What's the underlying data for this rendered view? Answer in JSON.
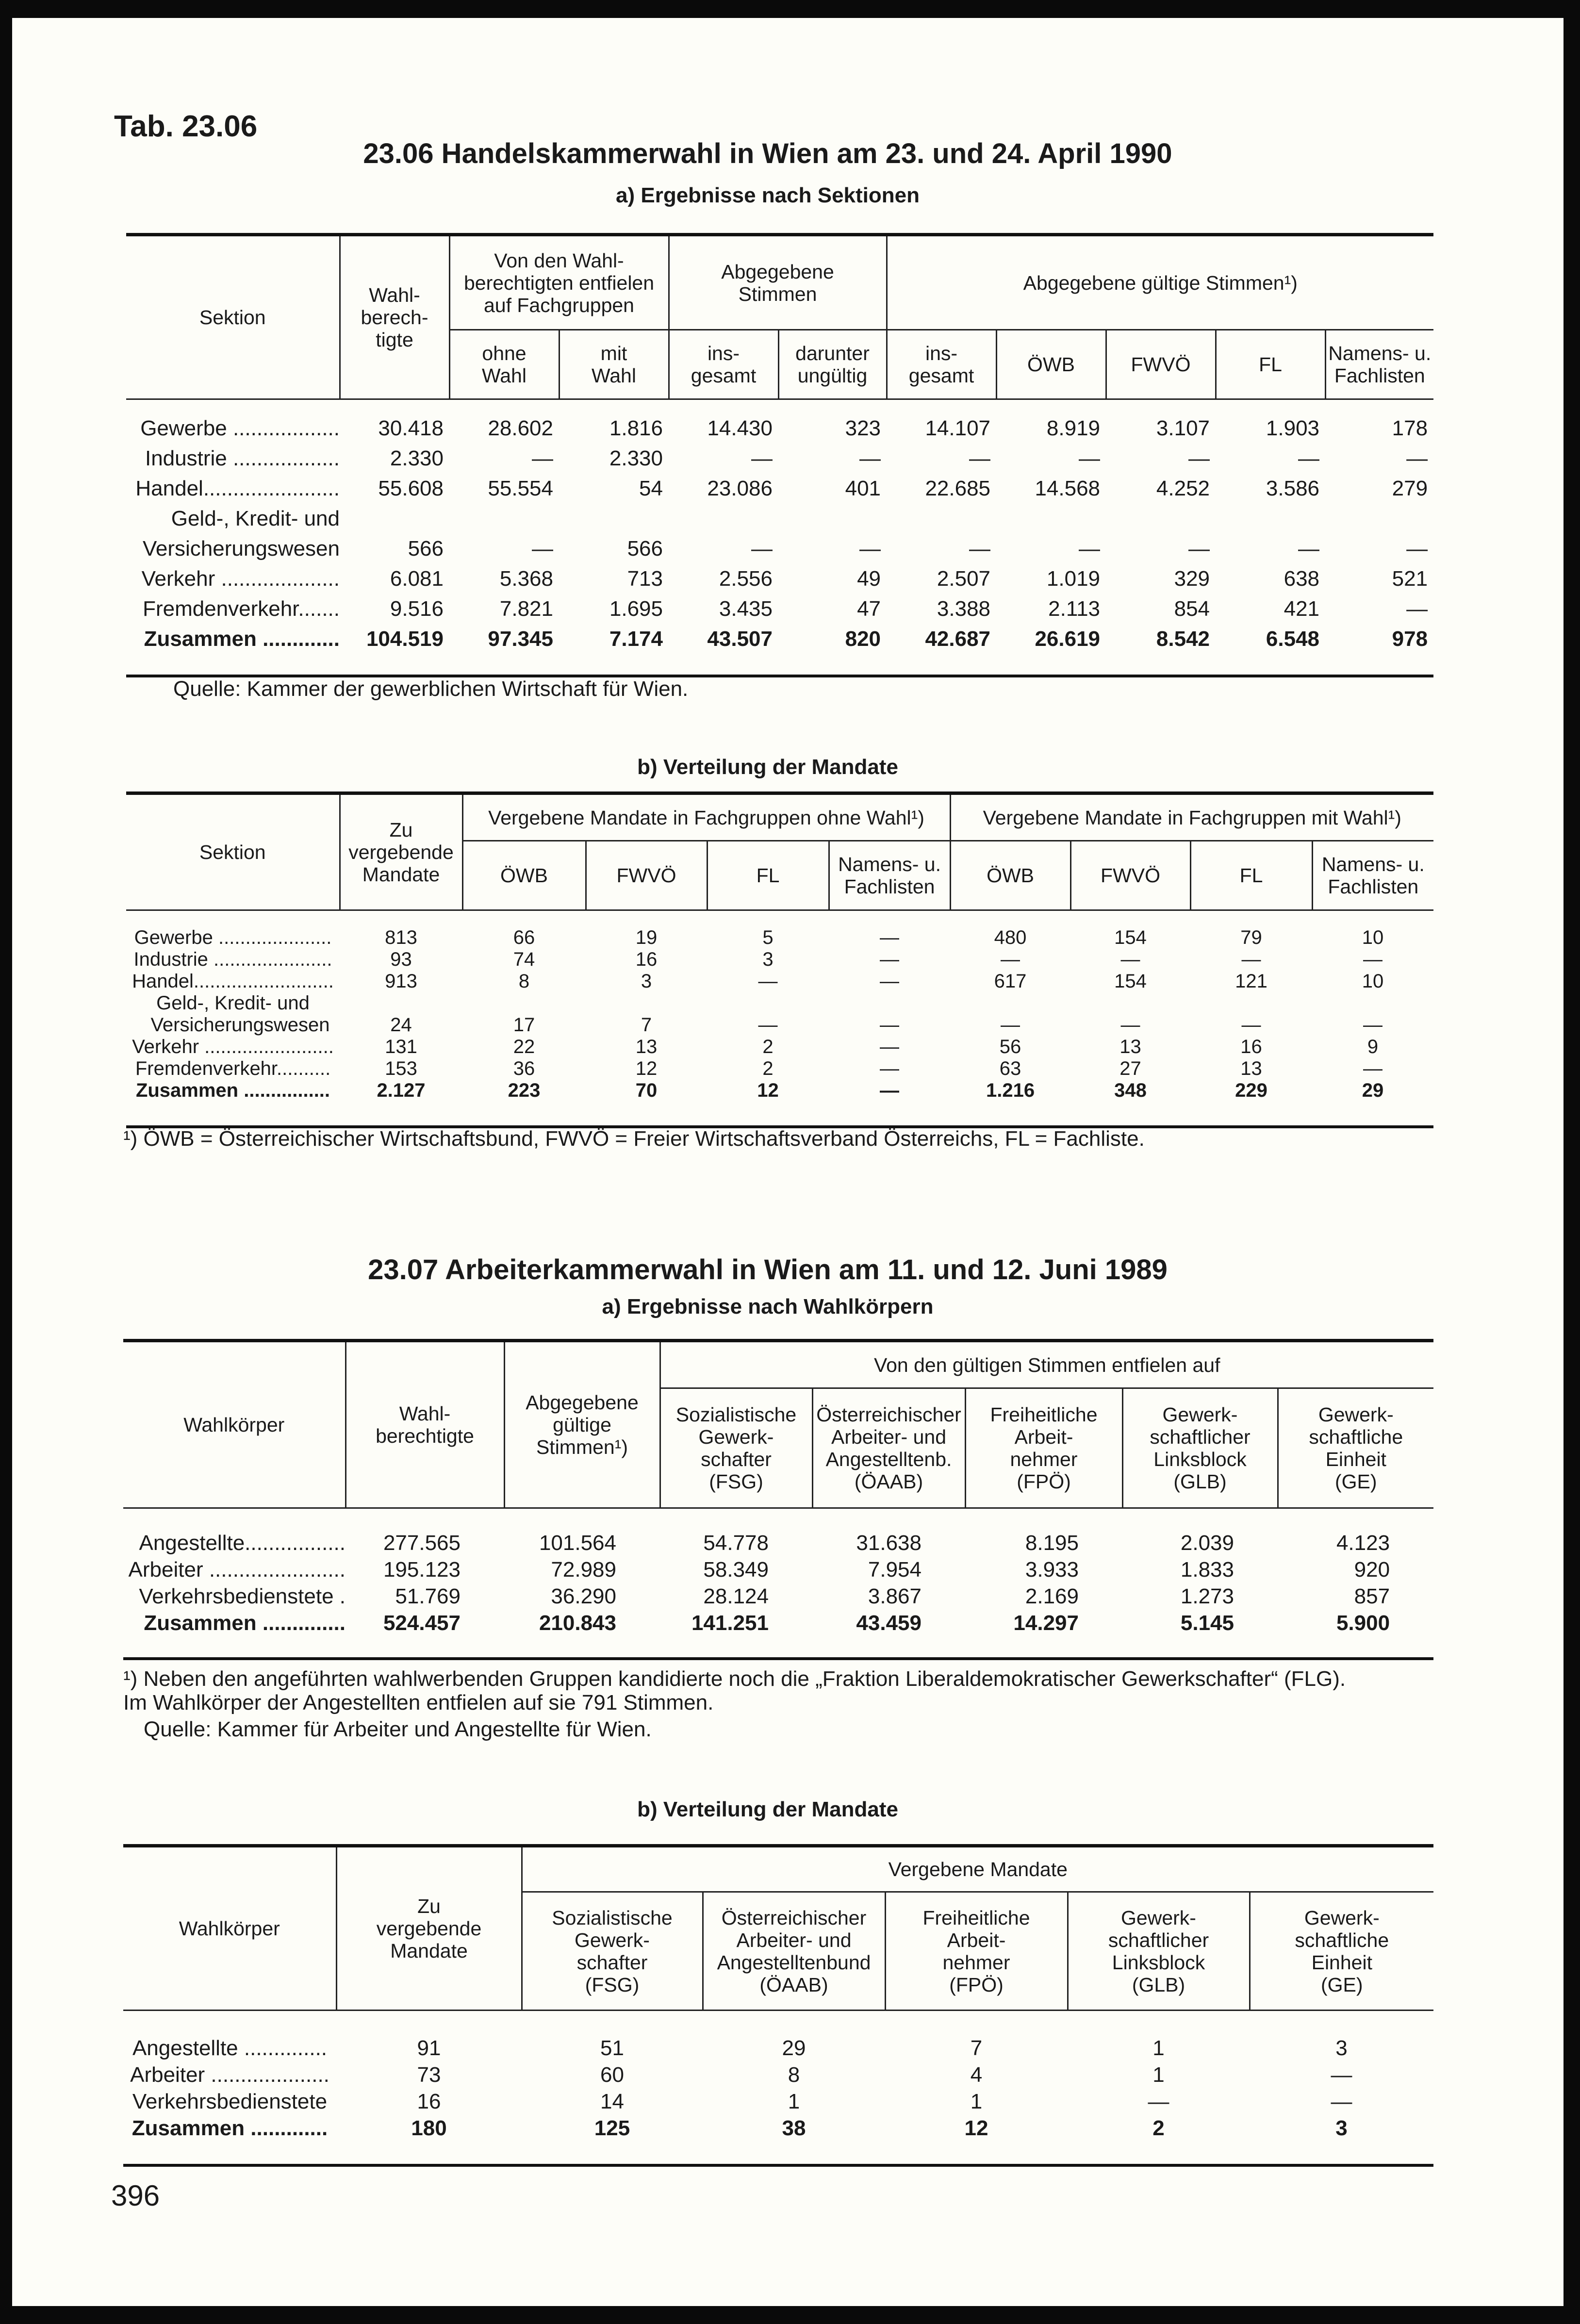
{
  "tab_label": "Tab. 23.06",
  "t1": {
    "title": "23.06 Handelskammerwahl in Wien am 23. und 24. April 1990",
    "a": {
      "subtitle": "a) Ergebnisse nach Sektionen",
      "header": {
        "sektion": "Sektion",
        "wahlberechtigte": "Wahl-\nberech-\ntigte",
        "fachgruppen": "Von den Wahl-\nberechtigten entfielen\nauf Fachgruppen",
        "abgegeben": "Abgegebene\nStimmen",
        "gueltig": "Abgegebene gültige Stimmen¹)",
        "ohne_wahl": "ohne\nWahl",
        "mit_wahl": "mit\nWahl",
        "insgesamt": "ins-\ngesamt",
        "ungueltig": "darunter\nungültig",
        "insgesamt2": "ins-\ngesamt",
        "oewb": "ÖWB",
        "fwvoe": "FWVÖ",
        "fl": "FL",
        "namens": "Namens- u.\nFachlisten"
      },
      "rows": [
        {
          "label": "Gewerbe ..................",
          "values": [
            "30.418",
            "28.602",
            "1.816",
            "14.430",
            "323",
            "14.107",
            "8.919",
            "3.107",
            "1.903",
            "178"
          ]
        },
        {
          "label": "Industrie ..................",
          "values": [
            "2.330",
            "—",
            "2.330",
            "—",
            "—",
            "—",
            "—",
            "—",
            "—",
            "—"
          ]
        },
        {
          "label": "Handel.......................",
          "values": [
            "55.608",
            "55.554",
            "54",
            "23.086",
            "401",
            "22.685",
            "14.568",
            "4.252",
            "3.586",
            "279"
          ]
        },
        {
          "label": "Geld-, Kredit- und",
          "values": []
        },
        {
          "label": "Versicherungswesen",
          "values": [
            "566",
            "—",
            "566",
            "—",
            "—",
            "—",
            "—",
            "—",
            "—",
            "—"
          ]
        },
        {
          "label": "Verkehr ....................",
          "values": [
            "6.081",
            "5.368",
            "713",
            "2.556",
            "49",
            "2.507",
            "1.019",
            "329",
            "638",
            "521"
          ]
        },
        {
          "label": "Fremdenverkehr.......",
          "values": [
            "9.516",
            "7.821",
            "1.695",
            "3.435",
            "47",
            "3.388",
            "2.113",
            "854",
            "421",
            "—"
          ]
        },
        {
          "label": "Zusammen .............",
          "total": true,
          "values": [
            "104.519",
            "97.345",
            "7.174",
            "43.507",
            "820",
            "42.687",
            "26.619",
            "8.542",
            "6.548",
            "978"
          ]
        }
      ],
      "source": "Quelle: Kammer der gewerblichen Wirtschaft für Wien."
    },
    "b": {
      "subtitle": "b) Verteilung der Mandate",
      "header": {
        "sektion": "Sektion",
        "zu_vergebende": "Zu\nvergebende\nMandate",
        "ohne_wahl": "Vergebene Mandate in Fachgruppen ohne Wahl¹)",
        "mit_wahl": "Vergebene Mandate in Fachgruppen mit Wahl¹)",
        "oewb": "ÖWB",
        "fwvoe": "FWVÖ",
        "fl": "FL",
        "namens": "Namens- u.\nFachlisten"
      },
      "rows": [
        {
          "label": "Gewerbe .....................",
          "values": [
            "813",
            "66",
            "19",
            "5",
            "—",
            "480",
            "154",
            "79",
            "10"
          ]
        },
        {
          "label": "Industrie ......................",
          "values": [
            "93",
            "74",
            "16",
            "3",
            "—",
            "—",
            "—",
            "—",
            "—"
          ]
        },
        {
          "label": "Handel..........................",
          "values": [
            "913",
            "8",
            "3",
            "—",
            "—",
            "617",
            "154",
            "121",
            "10"
          ]
        },
        {
          "label": "Geld-, Kredit- und",
          "values": []
        },
        {
          "label": "Versicherungswesen",
          "values": [
            "24",
            "17",
            "7",
            "—",
            "—",
            "—",
            "—",
            "—",
            "—"
          ]
        },
        {
          "label": "Verkehr ........................",
          "values": [
            "131",
            "22",
            "13",
            "2",
            "—",
            "56",
            "13",
            "16",
            "9"
          ]
        },
        {
          "label": "Fremdenverkehr..........",
          "values": [
            "153",
            "36",
            "12",
            "2",
            "—",
            "63",
            "27",
            "13",
            "—"
          ]
        },
        {
          "label": "Zusammen ................",
          "total": true,
          "values": [
            "2.127",
            "223",
            "70",
            "12",
            "—",
            "1.216",
            "348",
            "229",
            "29"
          ]
        }
      ],
      "footnote": "¹) ÖWB = Österreichischer Wirtschaftsbund, FWVÖ = Freier Wirtschaftsverband Österreichs, FL = Fachliste."
    }
  },
  "t2": {
    "title": "23.07 Arbeiterkammerwahl in Wien am 11. und 12. Juni 1989",
    "a": {
      "subtitle": "a) Ergebnisse nach Wahlkörpern",
      "header": {
        "wahlkoerper": "Wahlkörper",
        "wahlberechtigte": "Wahl-\nberechtigte",
        "abgegeben": "Abgegebene\ngültige\nStimmen¹)",
        "group": "Von den gültigen Stimmen entfielen auf",
        "fsg": "Sozialistische\nGewerk-\nschafter\n(FSG)",
        "oeaab": "Österreichischer\nArbeiter- und\nAngestelltenb.\n(ÖAAB)",
        "fpoe": "Freiheitliche\nArbeit-\nnehmer\n(FPÖ)",
        "glb": "Gewerk-\nschaftlicher\nLinksblock\n(GLB)",
        "ge": "Gewerk-\nschaftliche\nEinheit\n(GE)"
      },
      "rows": [
        {
          "label": "Angestellte.................",
          "values": [
            "277.565",
            "101.564",
            "54.778",
            "31.638",
            "8.195",
            "2.039",
            "4.123"
          ]
        },
        {
          "label": "Arbeiter .......................",
          "values": [
            "195.123",
            "72.989",
            "58.349",
            "7.954",
            "3.933",
            "1.833",
            "920"
          ]
        },
        {
          "label": "Verkehrsbedienstete .",
          "values": [
            "51.769",
            "36.290",
            "28.124",
            "3.867",
            "2.169",
            "1.273",
            "857"
          ]
        },
        {
          "label": "Zusammen ..............",
          "total": true,
          "values": [
            "524.457",
            "210.843",
            "141.251",
            "43.459",
            "14.297",
            "5.145",
            "5.900"
          ]
        }
      ],
      "footnote_lines": [
        "¹) Neben den angeführten wahlwerbenden Gruppen kandidierte noch die „Fraktion Liberaldemokratischer Gewerkschafter“ (FLG).",
        "Im Wahlkörper der Angestellten entfielen auf sie 791 Stimmen."
      ],
      "source": "Quelle: Kammer für Arbeiter und Angestellte für Wien."
    },
    "b": {
      "subtitle": "b) Verteilung der Mandate",
      "header": {
        "wahlkoerper": "Wahlkörper",
        "zu_vergebende": "Zu\nvergebende\nMandate",
        "group": "Vergebene Mandate",
        "fsg": "Sozialistische\nGewerk-\nschafter\n(FSG)",
        "oeaab": "Österreichischer\nArbeiter- und\nAngestelltenbund\n(ÖAAB)",
        "fpoe": "Freiheitliche\nArbeit-\nnehmer\n(FPÖ)",
        "glb": "Gewerk-\nschaftlicher\nLinksblock\n(GLB)",
        "ge": "Gewerk-\nschaftliche\nEinheit\n(GE)"
      },
      "rows": [
        {
          "label": "Angestellte ..............",
          "values": [
            "91",
            "51",
            "29",
            "7",
            "1",
            "3"
          ]
        },
        {
          "label": "Arbeiter ....................",
          "values": [
            "73",
            "60",
            "8",
            "4",
            "1",
            "—"
          ]
        },
        {
          "label": "Verkehrsbedienstete",
          "values": [
            "16",
            "14",
            "1",
            "1",
            "—",
            "—"
          ]
        },
        {
          "label": "Zusammen .............",
          "total": true,
          "values": [
            "180",
            "125",
            "38",
            "12",
            "2",
            "3"
          ]
        }
      ]
    }
  },
  "page_number": "396"
}
